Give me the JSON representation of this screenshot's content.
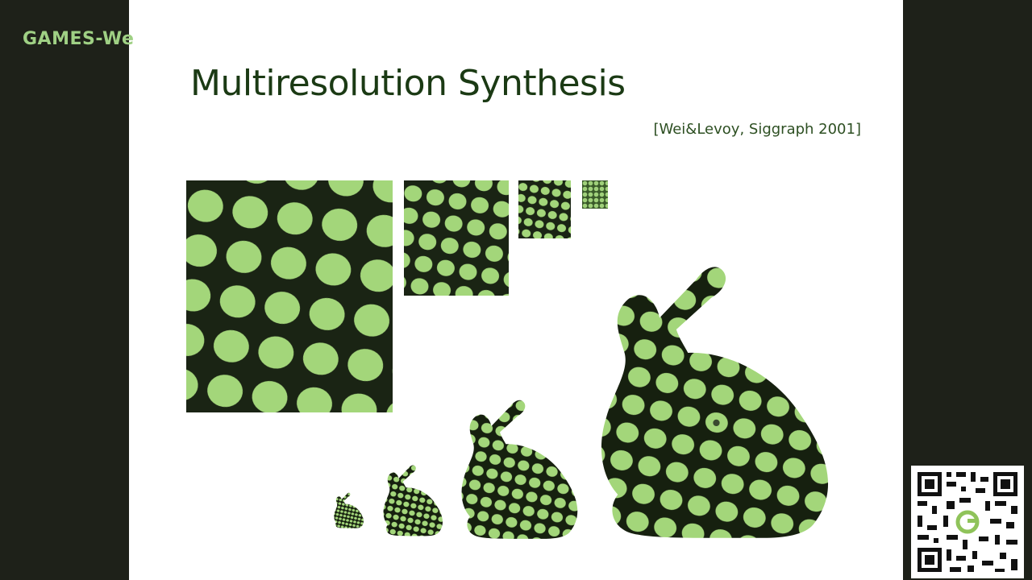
{
  "watermark": "GAMES-We",
  "slide": {
    "title": "Multiresolution Synthesis",
    "citation": "[Wei&Levoy, Siggraph 2001]"
  },
  "colors": {
    "background": "#1e2119",
    "title": "#1b3a14",
    "texture_light": "#a3d67a",
    "texture_dark": "#1a2414",
    "watermark": "#9fd084"
  },
  "figures": {
    "textures": [
      "texture-level-1",
      "texture-level-2",
      "texture-level-3",
      "texture-level-4"
    ],
    "bunnies": [
      "bunny-level-1",
      "bunny-level-2",
      "bunny-level-3",
      "bunny-level-4"
    ]
  }
}
